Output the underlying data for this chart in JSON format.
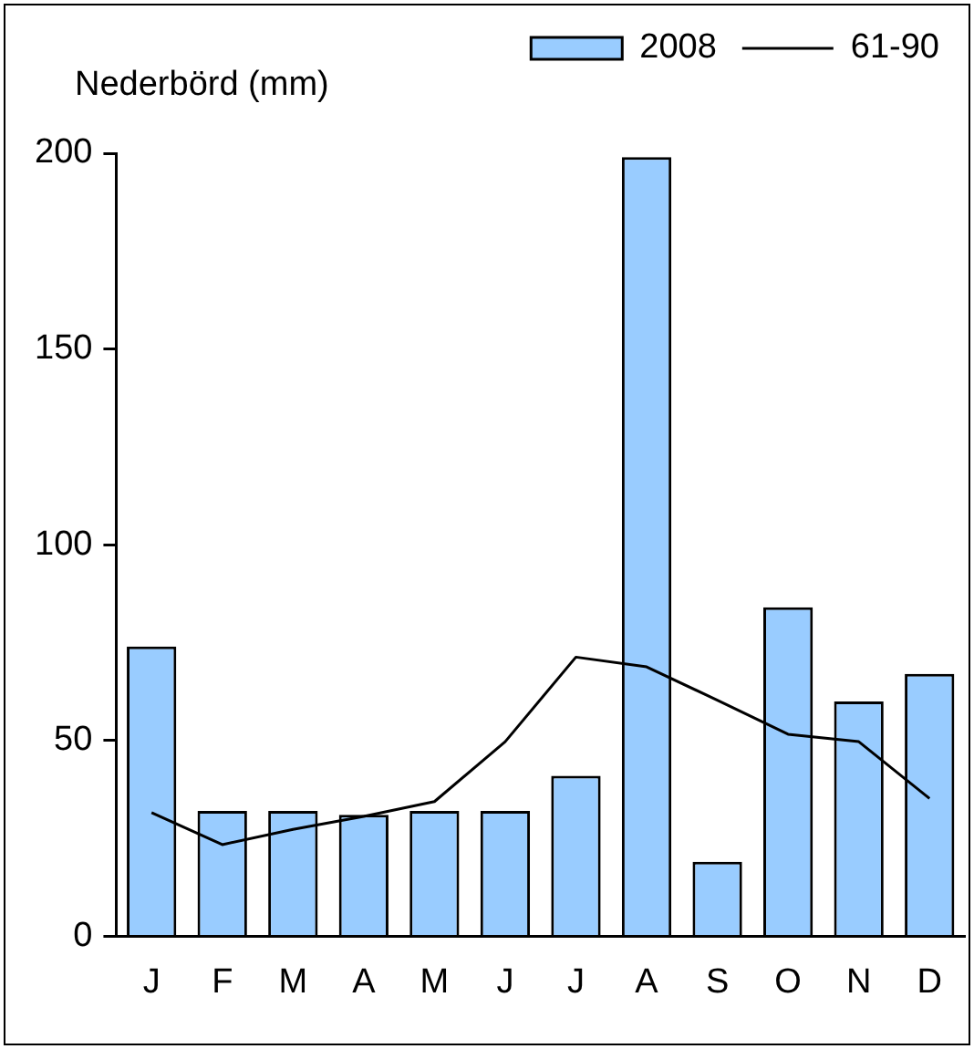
{
  "chart_data": {
    "type": "bar",
    "ylabel": "Nederbörd (mm)",
    "categories": [
      "J",
      "F",
      "M",
      "A",
      "M",
      "J",
      "J",
      "A",
      "S",
      "O",
      "N",
      "D"
    ],
    "series": [
      {
        "name": "2008",
        "color": "#99ccff",
        "values": [
          74,
          32,
          32,
          31,
          32,
          32,
          41,
          199,
          19,
          84,
          60,
          67
        ]
      },
      {
        "name": "61-90",
        "type": "line",
        "color": "#000000",
        "values": [
          31.6,
          23.4,
          27.3,
          30.6,
          34.4,
          49.7,
          71.3,
          68.8,
          60.3,
          51.6,
          49.7,
          35.2
        ]
      }
    ],
    "ylim": [
      0,
      200
    ],
    "yticks": [
      0,
      50,
      100,
      150,
      200
    ],
    "grid": false,
    "legend": "top right",
    "marker": "none"
  }
}
